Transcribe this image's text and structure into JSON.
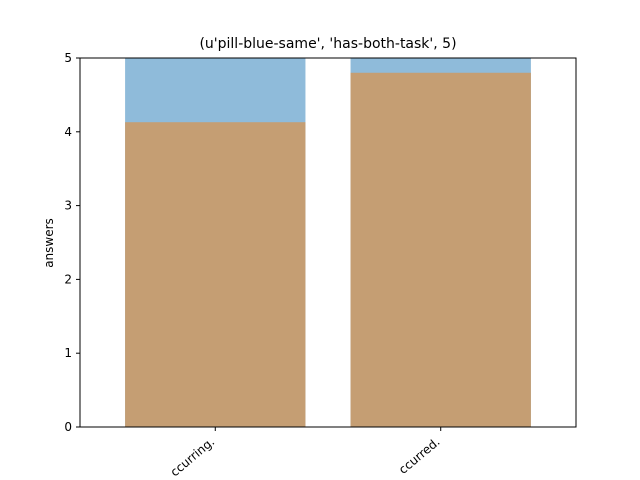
{
  "chart_data": {
    "type": "bar",
    "title": "(u'pill-blue-same', 'has-both-task', 5)",
    "xlabel": "",
    "ylabel": "answers",
    "categories": [
      "ccurring.",
      "ccurred."
    ],
    "series": [
      {
        "values": [
          5,
          5
        ],
        "color": "#8fbbda"
      },
      {
        "values": [
          4.13,
          4.8
        ],
        "color": "#c59e73"
      }
    ],
    "ylim": [
      0,
      5
    ],
    "yticks": [
      "0",
      "1",
      "2",
      "3",
      "4",
      "5"
    ],
    "grid": false,
    "legend": "none"
  }
}
